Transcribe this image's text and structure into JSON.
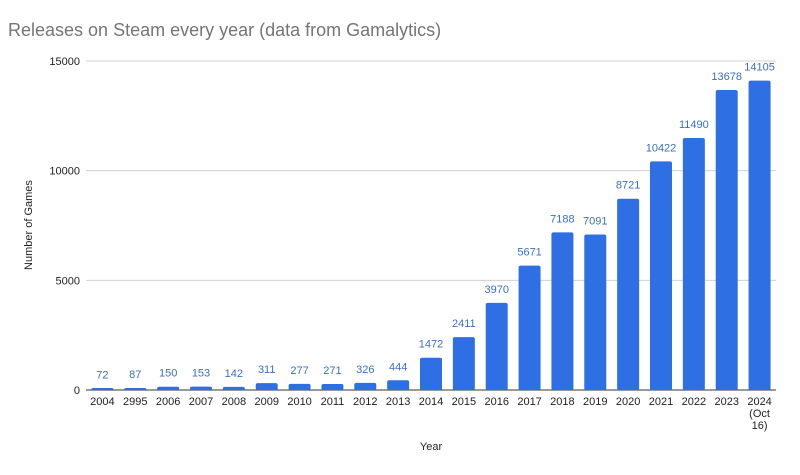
{
  "chart_data": {
    "type": "bar",
    "title": "Releases on Steam every year (data from Gamalytics)",
    "xlabel": "Year",
    "ylabel": "Number of Games",
    "ylim": [
      0,
      15000
    ],
    "yticks": [
      "0",
      "5000",
      "10000",
      "15000"
    ],
    "grid": true,
    "categories": [
      "2004",
      "2995",
      "2006",
      "2007",
      "2008",
      "2009",
      "2010",
      "2011",
      "2012",
      "2013",
      "2014",
      "2015",
      "2016",
      "2017",
      "2018",
      "2019",
      "2020",
      "2021",
      "2022",
      "2023",
      "2024 (Oct 16)"
    ],
    "values": [
      72,
      87,
      150,
      153,
      142,
      311,
      277,
      271,
      326,
      444,
      1472,
      2411,
      3970,
      5671,
      7188,
      7091,
      8721,
      10422,
      11490,
      13678,
      14105
    ],
    "data_labels": true,
    "colors": {
      "bar": "#2f6fe4",
      "label": "#3a6fc4",
      "grid": "#d0d0d0",
      "axis": "#333333"
    }
  }
}
